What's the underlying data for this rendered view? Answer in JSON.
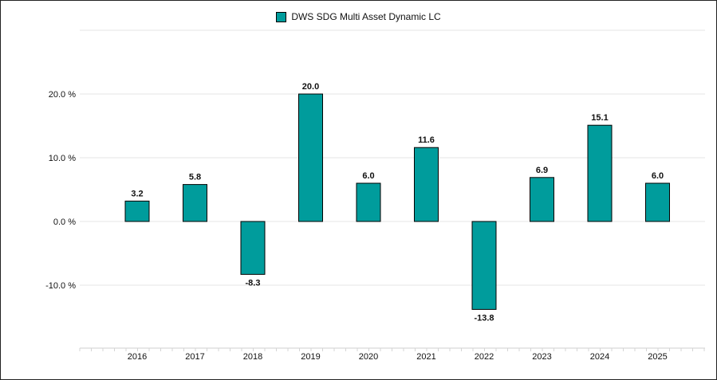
{
  "chart_data": {
    "type": "bar",
    "categories": [
      "2016",
      "2017",
      "2018",
      "2019",
      "2020",
      "2021",
      "2022",
      "2023",
      "2024",
      "2025"
    ],
    "series": [
      {
        "name": "DWS SDG Multi Asset Dynamic LC",
        "values": [
          3.2,
          5.8,
          -8.3,
          20.0,
          6.0,
          11.6,
          -13.8,
          6.9,
          15.1,
          6.0
        ],
        "color": "#009c9c"
      }
    ],
    "value_labels": [
      "3.2",
      "5.8",
      "-8.3",
      "20.0",
      "6.0",
      "11.6",
      "-13.8",
      "6.9",
      "15.1",
      "6.0"
    ],
    "y_ticks": [
      20,
      10,
      0,
      -10
    ],
    "y_tick_labels": [
      "20.0 %",
      "10.0 %",
      "0.0 %",
      "-10.0 %"
    ],
    "ylim": [
      -20,
      30
    ],
    "grid": true,
    "legend_position": "top-center",
    "title": "",
    "xlabel": "",
    "ylabel": ""
  }
}
